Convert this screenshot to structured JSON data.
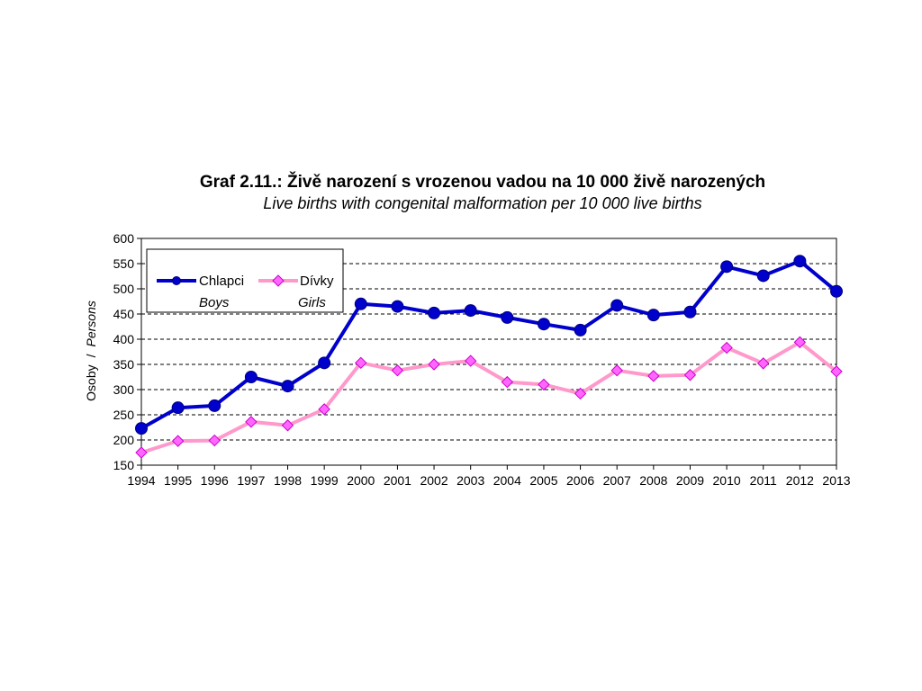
{
  "chart_data": {
    "type": "line",
    "title": "Graf 2.11.: Živě narození s vrozenou vadou na 10 000 živě narozených",
    "subtitle": "Live births with congenital malformation per 10 000 live births",
    "ylabel_cz": "Osoby",
    "ylabel_sep": "/",
    "ylabel_en": "Persons",
    "ylim": [
      150,
      600
    ],
    "yticks": [
      150,
      200,
      250,
      300,
      350,
      400,
      450,
      500,
      550,
      600
    ],
    "grid": "horizontal dashed",
    "legend_position": "top-left",
    "x": [
      "1994",
      "1995",
      "1996",
      "1997",
      "1998",
      "1999",
      "2000",
      "2001",
      "2002",
      "2003",
      "2004",
      "2005",
      "2006",
      "2007",
      "2008",
      "2009",
      "2010",
      "2011",
      "2012",
      "2013"
    ],
    "series": [
      {
        "name": "Chlapci",
        "name_en": "Boys",
        "color": "#0000CC",
        "marker": "circle",
        "values": [
          223,
          264,
          268,
          325,
          307,
          353,
          470,
          465,
          452,
          457,
          443,
          430,
          418,
          467,
          448,
          454,
          544,
          526,
          555,
          495
        ]
      },
      {
        "name": "Dívky",
        "name_en": "Girls",
        "color": "#FF99CC",
        "marker_fill": "#FF66FF",
        "marker": "diamond",
        "values": [
          175,
          198,
          199,
          236,
          229,
          261,
          353,
          338,
          350,
          357,
          315,
          310,
          292,
          338,
          327,
          329,
          383,
          352,
          394,
          336
        ]
      }
    ]
  }
}
